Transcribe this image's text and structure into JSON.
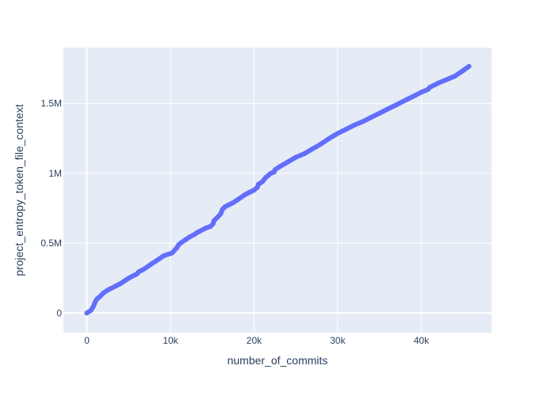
{
  "chart_data": {
    "type": "scatter",
    "mode": "lines+markers",
    "title": "",
    "xlabel": "number_of_commits",
    "ylabel": "project_entropy_token_file_context",
    "xlim": [
      -2800,
      48400
    ],
    "ylim": [
      -140000,
      1900000
    ],
    "grid": true,
    "legend": "none",
    "x_ticks": [
      {
        "value": 0,
        "label": "0"
      },
      {
        "value": 10000,
        "label": "10k"
      },
      {
        "value": 20000,
        "label": "20k"
      },
      {
        "value": 30000,
        "label": "30k"
      },
      {
        "value": 40000,
        "label": "40k"
      }
    ],
    "y_ticks": [
      {
        "value": 0,
        "label": "0"
      },
      {
        "value": 500000,
        "label": "0.5M"
      },
      {
        "value": 1000000,
        "label": "1M"
      },
      {
        "value": 1500000,
        "label": "1.5M"
      }
    ],
    "series": [
      {
        "color": "#636efa",
        "x": [
          0,
          500,
          800,
          1000,
          1200,
          1600,
          2000,
          2500,
          3000,
          3500,
          4000,
          4500,
          5000,
          5500,
          6000,
          6200,
          6700,
          7200,
          7700,
          8200,
          8700,
          9200,
          9700,
          10200,
          10500,
          10800,
          11000,
          11300,
          11800,
          12300,
          12800,
          13300,
          13800,
          14300,
          14800,
          15100,
          15200,
          15700,
          16000,
          16200,
          16500,
          17000,
          17500,
          18000,
          18500,
          19000,
          19500,
          20000,
          20400,
          20500,
          21000,
          21400,
          22000,
          22400,
          22500,
          23000,
          24000,
          25000,
          26000,
          27000,
          28000,
          29000,
          30000,
          31000,
          32000,
          33000,
          34000,
          35000,
          35500,
          36000,
          37000,
          38000,
          39000,
          40000,
          40800,
          41000,
          42000,
          43000,
          44000,
          44500,
          45000,
          45700
        ],
        "y": [
          0,
          20000,
          50000,
          80000,
          100000,
          120000,
          145000,
          165000,
          180000,
          195000,
          210000,
          230000,
          250000,
          265000,
          280000,
          295000,
          310000,
          330000,
          350000,
          370000,
          390000,
          410000,
          420000,
          430000,
          450000,
          470000,
          490000,
          505000,
          525000,
          545000,
          560000,
          580000,
          595000,
          610000,
          620000,
          640000,
          660000,
          690000,
          710000,
          740000,
          760000,
          775000,
          790000,
          810000,
          830000,
          850000,
          865000,
          880000,
          900000,
          920000,
          940000,
          970000,
          1000000,
          1010000,
          1025000,
          1045000,
          1080000,
          1115000,
          1140000,
          1175000,
          1210000,
          1250000,
          1285000,
          1315000,
          1345000,
          1370000,
          1400000,
          1430000,
          1445000,
          1460000,
          1490000,
          1520000,
          1550000,
          1580000,
          1600000,
          1615000,
          1645000,
          1670000,
          1695000,
          1715000,
          1735000,
          1765000
        ]
      }
    ]
  }
}
